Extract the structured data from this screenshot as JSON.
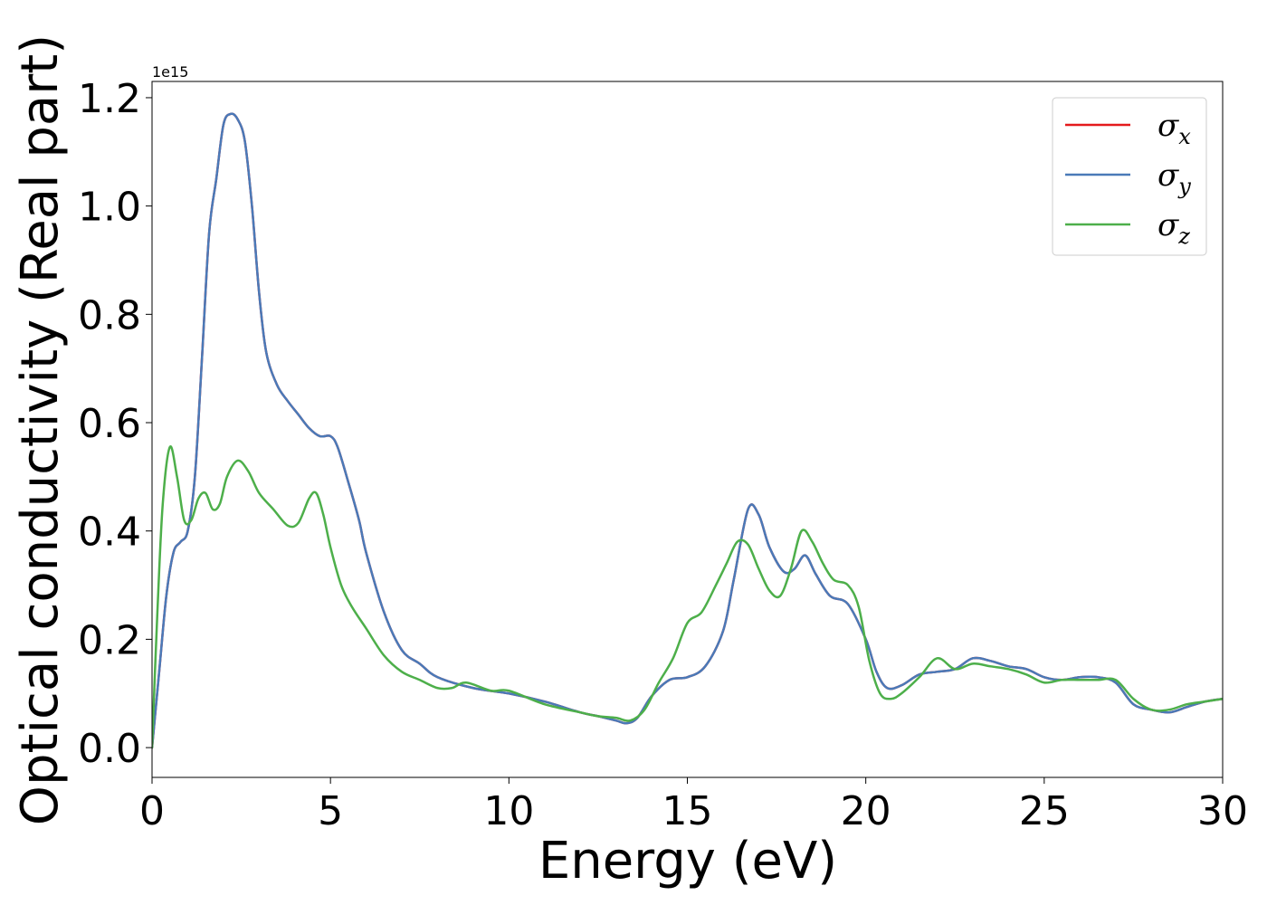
{
  "chart_data": {
    "type": "line",
    "xlabel": "Energy (eV)",
    "ylabel": "Optical conductivity (Real part)",
    "y_offset_label": "1e15",
    "xlim": [
      0,
      30
    ],
    "ylim": [
      -0.055,
      1.23
    ],
    "y_scale_factor": 1000000000000000.0,
    "xticks": [
      0,
      5,
      10,
      15,
      20,
      25,
      30
    ],
    "yticks": [
      0.0,
      0.2,
      0.4,
      0.6,
      0.8,
      1.0,
      1.2
    ],
    "xtick_labels": [
      "0",
      "5",
      "10",
      "15",
      "20",
      "25",
      "30"
    ],
    "ytick_labels": [
      "0.0",
      "0.2",
      "0.4",
      "0.6",
      "0.8",
      "1.0",
      "1.2"
    ],
    "grid": false,
    "legend_position": "top-right",
    "series": [
      {
        "legend_base": "σ",
        "legend_sub": "x",
        "color": "#e41a1c",
        "x": [
          0,
          0.2,
          0.4,
          0.6,
          0.8,
          1.0,
          1.2,
          1.4,
          1.6,
          1.8,
          2.0,
          2.2,
          2.4,
          2.6,
          2.8,
          3.0,
          3.2,
          3.5,
          3.8,
          4.1,
          4.4,
          4.7,
          5.0,
          5.2,
          5.5,
          5.8,
          6.0,
          6.5,
          7.0,
          7.5,
          8.0,
          9.0,
          10.0,
          11.0,
          12.0,
          12.5,
          13.0,
          13.3,
          13.6,
          14.0,
          14.5,
          15.0,
          15.5,
          16.0,
          16.3,
          16.7,
          17.0,
          17.3,
          17.7,
          18.0,
          18.3,
          18.6,
          19.0,
          19.5,
          20.0,
          20.3,
          20.6,
          21.0,
          21.5,
          22.0,
          22.5,
          23.0,
          23.5,
          24.0,
          24.5,
          25.0,
          25.5,
          26.0,
          26.5,
          27.0,
          27.5,
          28.0,
          28.5,
          29.0,
          29.5,
          30.0
        ],
        "y": [
          0.0,
          0.14,
          0.28,
          0.36,
          0.38,
          0.4,
          0.5,
          0.72,
          0.95,
          1.05,
          1.15,
          1.17,
          1.16,
          1.12,
          1.0,
          0.84,
          0.73,
          0.67,
          0.64,
          0.615,
          0.59,
          0.575,
          0.575,
          0.555,
          0.49,
          0.42,
          0.36,
          0.25,
          0.18,
          0.155,
          0.13,
          0.11,
          0.1,
          0.085,
          0.065,
          0.058,
          0.05,
          0.045,
          0.055,
          0.095,
          0.125,
          0.13,
          0.15,
          0.215,
          0.31,
          0.44,
          0.43,
          0.37,
          0.325,
          0.33,
          0.355,
          0.32,
          0.28,
          0.265,
          0.2,
          0.14,
          0.11,
          0.115,
          0.135,
          0.14,
          0.145,
          0.165,
          0.16,
          0.15,
          0.145,
          0.13,
          0.125,
          0.13,
          0.13,
          0.12,
          0.08,
          0.07,
          0.065,
          0.075,
          0.085,
          0.09
        ]
      },
      {
        "legend_base": "σ",
        "legend_sub": "y",
        "color": "#4a7ab8",
        "x": [
          0,
          0.2,
          0.4,
          0.6,
          0.8,
          1.0,
          1.2,
          1.4,
          1.6,
          1.8,
          2.0,
          2.2,
          2.4,
          2.6,
          2.8,
          3.0,
          3.2,
          3.5,
          3.8,
          4.1,
          4.4,
          4.7,
          5.0,
          5.2,
          5.5,
          5.8,
          6.0,
          6.5,
          7.0,
          7.5,
          8.0,
          9.0,
          10.0,
          11.0,
          12.0,
          12.5,
          13.0,
          13.3,
          13.6,
          14.0,
          14.5,
          15.0,
          15.5,
          16.0,
          16.3,
          16.7,
          17.0,
          17.3,
          17.7,
          18.0,
          18.3,
          18.6,
          19.0,
          19.5,
          20.0,
          20.3,
          20.6,
          21.0,
          21.5,
          22.0,
          22.5,
          23.0,
          23.5,
          24.0,
          24.5,
          25.0,
          25.5,
          26.0,
          26.5,
          27.0,
          27.5,
          28.0,
          28.5,
          29.0,
          29.5,
          30.0
        ],
        "y": [
          0.0,
          0.14,
          0.28,
          0.36,
          0.38,
          0.4,
          0.5,
          0.72,
          0.95,
          1.05,
          1.15,
          1.17,
          1.16,
          1.12,
          1.0,
          0.84,
          0.73,
          0.67,
          0.64,
          0.615,
          0.59,
          0.575,
          0.575,
          0.555,
          0.49,
          0.42,
          0.36,
          0.25,
          0.18,
          0.155,
          0.13,
          0.11,
          0.1,
          0.085,
          0.065,
          0.058,
          0.05,
          0.045,
          0.055,
          0.095,
          0.125,
          0.13,
          0.15,
          0.215,
          0.31,
          0.44,
          0.43,
          0.37,
          0.325,
          0.33,
          0.355,
          0.32,
          0.28,
          0.265,
          0.2,
          0.14,
          0.11,
          0.115,
          0.135,
          0.14,
          0.145,
          0.165,
          0.16,
          0.15,
          0.145,
          0.13,
          0.125,
          0.13,
          0.13,
          0.12,
          0.08,
          0.07,
          0.065,
          0.075,
          0.085,
          0.09
        ]
      },
      {
        "legend_base": "σ",
        "legend_sub": "z",
        "color": "#4daf4a",
        "x": [
          0,
          0.15,
          0.3,
          0.5,
          0.7,
          0.9,
          1.1,
          1.3,
          1.5,
          1.7,
          1.9,
          2.1,
          2.4,
          2.7,
          3.0,
          3.4,
          3.8,
          4.1,
          4.4,
          4.6,
          4.8,
          5.0,
          5.3,
          5.6,
          6.0,
          6.5,
          7.0,
          7.5,
          8.0,
          8.4,
          8.8,
          9.5,
          10.0,
          11.0,
          12.0,
          12.5,
          13.0,
          13.4,
          13.8,
          14.2,
          14.6,
          15.0,
          15.4,
          15.8,
          16.1,
          16.4,
          16.7,
          17.0,
          17.3,
          17.6,
          17.9,
          18.2,
          18.5,
          18.8,
          19.1,
          19.5,
          19.8,
          20.1,
          20.4,
          20.7,
          21.0,
          21.5,
          22.0,
          22.5,
          23.0,
          23.5,
          24.0,
          24.5,
          25.0,
          25.5,
          26.0,
          26.5,
          27.0,
          27.5,
          28.0,
          28.5,
          29.0,
          29.5,
          30.0
        ],
        "y": [
          0.0,
          0.25,
          0.45,
          0.555,
          0.5,
          0.42,
          0.42,
          0.46,
          0.47,
          0.44,
          0.45,
          0.5,
          0.53,
          0.51,
          0.47,
          0.44,
          0.41,
          0.415,
          0.46,
          0.47,
          0.43,
          0.37,
          0.3,
          0.26,
          0.22,
          0.17,
          0.14,
          0.125,
          0.11,
          0.11,
          0.12,
          0.105,
          0.105,
          0.08,
          0.065,
          0.058,
          0.055,
          0.05,
          0.07,
          0.12,
          0.165,
          0.23,
          0.25,
          0.3,
          0.34,
          0.38,
          0.375,
          0.33,
          0.29,
          0.28,
          0.33,
          0.4,
          0.38,
          0.34,
          0.31,
          0.3,
          0.26,
          0.16,
          0.1,
          0.09,
          0.1,
          0.13,
          0.165,
          0.145,
          0.155,
          0.15,
          0.145,
          0.135,
          0.12,
          0.125,
          0.125,
          0.125,
          0.125,
          0.09,
          0.07,
          0.07,
          0.08,
          0.085,
          0.09
        ]
      }
    ]
  }
}
